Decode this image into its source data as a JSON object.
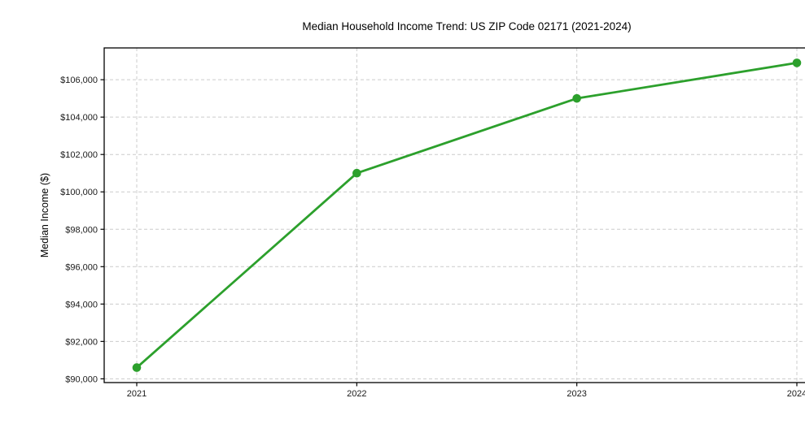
{
  "chart_data": {
    "type": "line",
    "title": "Median Household Income Trend: US ZIP Code 02171 (2021-2024)",
    "xlabel": "",
    "ylabel": "Median Income ($)",
    "x": [
      "2021",
      "2022",
      "2023",
      "2024"
    ],
    "series": [
      {
        "name": "Median Household Income",
        "values": [
          90600,
          101000,
          105000,
          106900
        ],
        "color": "#2ca02c",
        "marker": "circle"
      }
    ],
    "y_ticks": [
      90000,
      92000,
      94000,
      96000,
      98000,
      100000,
      102000,
      104000,
      106000
    ],
    "y_tick_labels": [
      "$90,000",
      "$92,000",
      "$94,000",
      "$96,000",
      "$98,000",
      "$100,000",
      "$102,000",
      "$104,000",
      "$106,000"
    ],
    "ylim": [
      89800,
      107700
    ],
    "grid": true,
    "grid_style": "dashed",
    "legend_position": "none",
    "colors": {
      "line": "#2ca02c",
      "grid": "#cccccc",
      "axis": "#000000",
      "tick_label": "#1a1a1a",
      "background": "#ffffff"
    }
  }
}
